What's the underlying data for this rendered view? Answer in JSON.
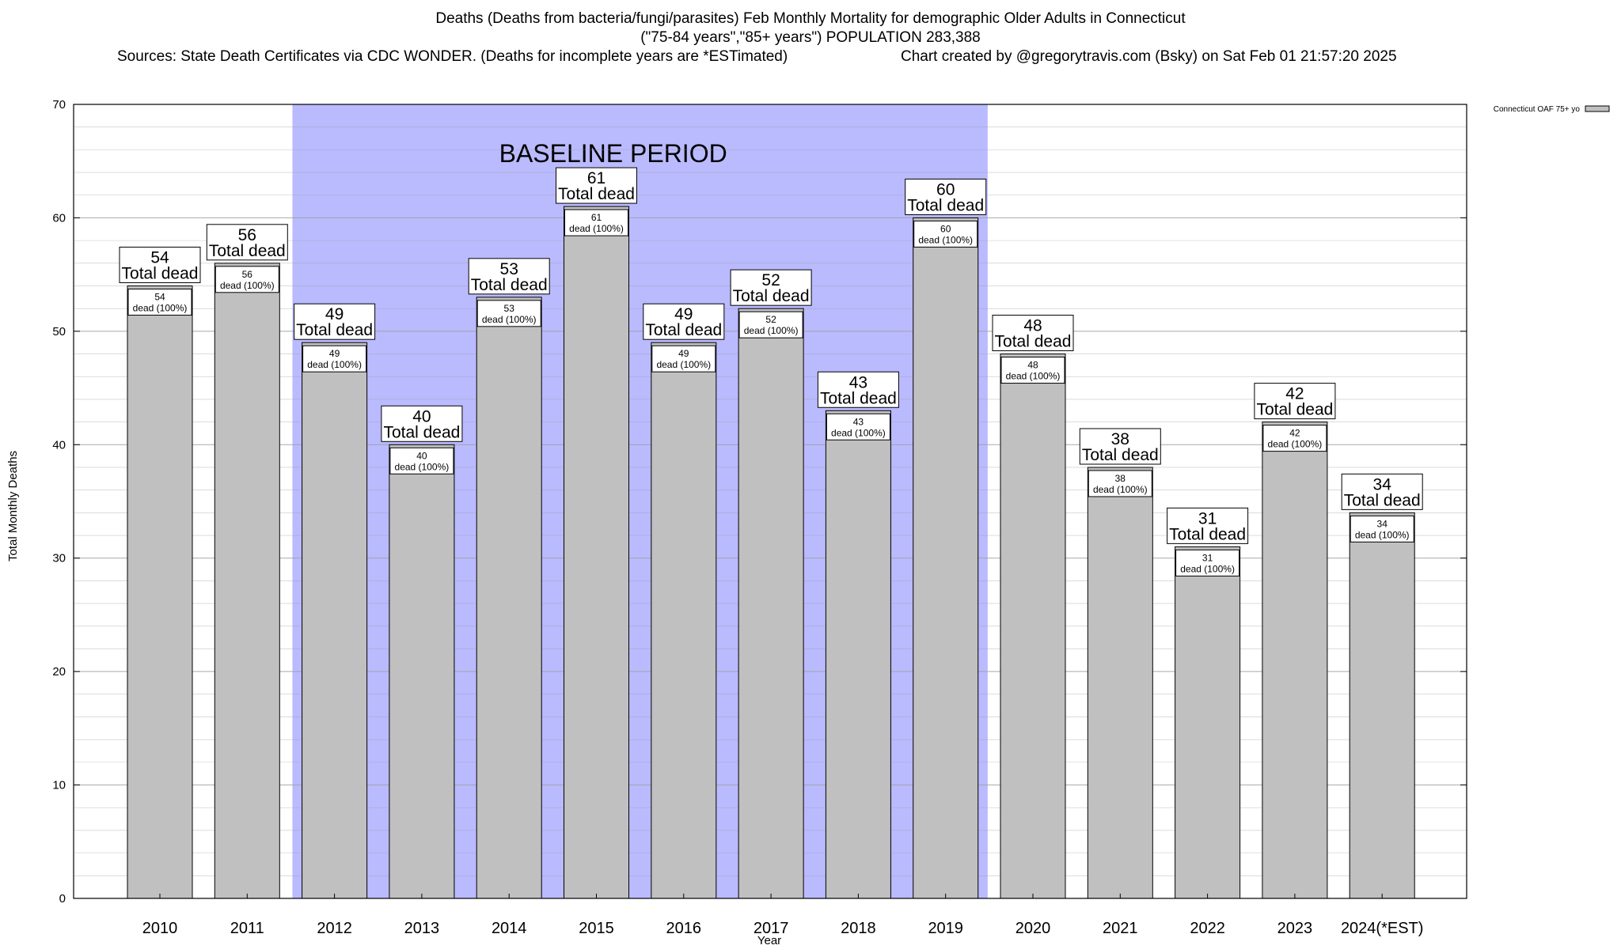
{
  "header": {
    "title_line1": "Deaths (Deaths from bacteria/fungi/parasites) Feb Monthly Mortality for demographic Older Adults in Connecticut",
    "title_line2": "(\"75-84 years\",\"85+ years\") POPULATION 283,388",
    "sources": "Sources: State Death Certificates via CDC WONDER. (Deaths for incomplete years are *ESTimated)",
    "credit": "Chart created by @gregorytravis.com (Bsky) on Sat Feb 01 21:57:20 2025"
  },
  "chart_data": {
    "type": "bar",
    "categories": [
      "2010",
      "2011",
      "2012",
      "2013",
      "2014",
      "2015",
      "2016",
      "2017",
      "2018",
      "2019",
      "2020",
      "2021",
      "2022",
      "2023",
      "2024(*EST)"
    ],
    "series": [
      {
        "name": "Connecticut OAF 75+ yo",
        "values": [
          54,
          56,
          49,
          40,
          53,
          61,
          49,
          52,
          43,
          60,
          48,
          38,
          31,
          42,
          34
        ]
      }
    ],
    "bar_labels": {
      "total_suffix": "Total dead",
      "inner_suffix": "dead (100%)"
    },
    "xlabel": "Year",
    "ylabel": "Total Monthly Deaths",
    "ylim": [
      0,
      70
    ],
    "yticks": [
      0,
      10,
      20,
      30,
      40,
      50,
      60,
      70
    ],
    "grid": true,
    "legend_position": "top-right",
    "baseline_period": {
      "label": "BASELINE PERIOD",
      "start": "2012",
      "end": "2019"
    },
    "colors": {
      "bar_fill": "#c0c0c0",
      "bar_stroke": "#000000",
      "baseline_fill": "#babaff",
      "grid": "#a0a0a0"
    }
  }
}
